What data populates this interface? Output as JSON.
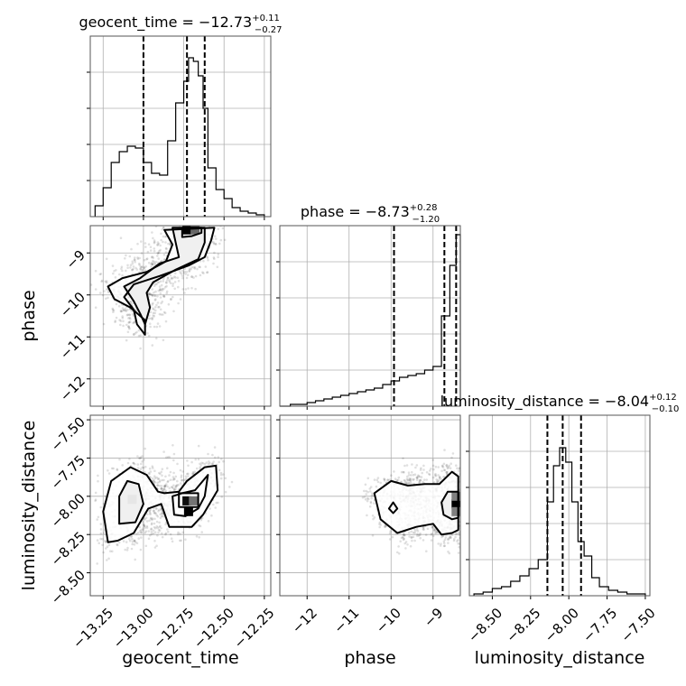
{
  "chart_data": {
    "type": "corner",
    "parameters": [
      {
        "name": "geocent_time",
        "median": "-12.73",
        "plus": "+0.11",
        "minus": "-0.27",
        "range": [
          -13.33,
          -12.21
        ],
        "ticks": [
          -13.25,
          -13.0,
          -12.75,
          -12.5,
          -12.25
        ],
        "tick_labels": [
          "−13.25",
          "−13.00",
          "−12.75",
          "−12.50",
          "−12.25"
        ],
        "quantile_lines": [
          -13.0,
          -12.73,
          -12.62
        ],
        "hist": {
          "bins": [
            -13.3,
            -13.25,
            -13.2,
            -13.15,
            -13.1,
            -13.05,
            -13.0,
            -12.95,
            -12.9,
            -12.85,
            -12.8,
            -12.75,
            -12.72,
            -12.69,
            -12.66,
            -12.63,
            -12.6,
            -12.55,
            -12.5,
            -12.45,
            -12.4,
            -12.35,
            -12.3,
            -12.25
          ],
          "counts": [
            0.06,
            0.16,
            0.3,
            0.36,
            0.39,
            0.38,
            0.3,
            0.24,
            0.23,
            0.42,
            0.63,
            0.75,
            0.88,
            0.86,
            0.78,
            0.6,
            0.27,
            0.15,
            0.1,
            0.05,
            0.03,
            0.02,
            0.01
          ]
        }
      },
      {
        "name": "phase",
        "median": "-8.73",
        "plus": "+0.28",
        "minus": "-1.20",
        "range": [
          -12.65,
          -8.35
        ],
        "ticks": [
          -12,
          -11,
          -10,
          -9
        ],
        "tick_labels": [
          "−12",
          "−11",
          "−10",
          "−9"
        ],
        "quantile_lines": [
          -9.93,
          -8.73,
          -8.45
        ],
        "hist": {
          "bins": [
            -12.65,
            -12.4,
            -12.2,
            -12.0,
            -11.8,
            -11.6,
            -11.4,
            -11.2,
            -11.0,
            -10.8,
            -10.6,
            -10.4,
            -10.2,
            -10.0,
            -9.8,
            -9.6,
            -9.4,
            -9.2,
            -9.0,
            -8.8,
            -8.6,
            -8.45,
            -8.35
          ],
          "counts": [
            0,
            0.01,
            0.01,
            0.02,
            0.03,
            0.04,
            0.05,
            0.06,
            0.07,
            0.08,
            0.09,
            0.1,
            0.12,
            0.14,
            0.16,
            0.17,
            0.18,
            0.2,
            0.22,
            0.5,
            0.78,
            0.95
          ]
        }
      },
      {
        "name": "luminosity_distance",
        "median": "-8.04",
        "plus": "+0.12",
        "minus": "-0.10",
        "range": [
          -8.65,
          -7.47
        ],
        "ticks": [
          -8.5,
          -8.25,
          -8.0,
          -7.75,
          -7.5
        ],
        "tick_labels": [
          "−8.50",
          "−8.25",
          "−8.00",
          "−7.75",
          "−7.50"
        ],
        "quantile_lines": [
          -8.14,
          -8.04,
          -7.92
        ],
        "hist": {
          "bins": [
            -8.62,
            -8.56,
            -8.5,
            -8.44,
            -8.38,
            -8.32,
            -8.26,
            -8.2,
            -8.14,
            -8.1,
            -8.06,
            -8.02,
            -7.98,
            -7.94,
            -7.9,
            -7.85,
            -7.8,
            -7.74,
            -7.68,
            -7.62,
            -7.56,
            -7.5
          ],
          "counts": [
            0.01,
            0.02,
            0.04,
            0.05,
            0.08,
            0.11,
            0.15,
            0.2,
            0.52,
            0.72,
            0.82,
            0.74,
            0.52,
            0.3,
            0.22,
            0.1,
            0.05,
            0.03,
            0.02,
            0.01,
            0.01
          ]
        }
      }
    ],
    "scatter_2d": [
      {
        "x_param": "geocent_time",
        "y_param": "phase",
        "contours": [
          [
            [
              -12.87,
              -8.45
            ],
            [
              -12.82,
              -8.8
            ],
            [
              -12.86,
              -9.2
            ],
            [
              -12.98,
              -9.45
            ],
            [
              -13.13,
              -9.6
            ],
            [
              -13.22,
              -9.8
            ],
            [
              -13.18,
              -10.1
            ],
            [
              -13.08,
              -10.3
            ],
            [
              -12.99,
              -10.6
            ],
            [
              -12.99,
              -10.95
            ],
            [
              -13.04,
              -10.7
            ],
            [
              -13.06,
              -10.35
            ],
            [
              -13.12,
              -10.05
            ],
            [
              -13.06,
              -9.75
            ],
            [
              -12.9,
              -9.55
            ],
            [
              -12.72,
              -9.3
            ],
            [
              -12.62,
              -9.1
            ],
            [
              -12.58,
              -8.7
            ],
            [
              -12.56,
              -8.4
            ]
          ],
          [
            [
              -12.82,
              -8.4
            ],
            [
              -12.8,
              -8.75
            ],
            [
              -12.78,
              -9.1
            ],
            [
              -12.9,
              -9.25
            ],
            [
              -13.02,
              -9.6
            ],
            [
              -13.12,
              -9.8
            ],
            [
              -13.06,
              -10.15
            ],
            [
              -13.02,
              -10.45
            ],
            [
              -12.99,
              -10.7
            ],
            [
              -12.96,
              -10.3
            ],
            [
              -12.98,
              -9.95
            ],
            [
              -12.94,
              -9.7
            ],
            [
              -12.8,
              -9.4
            ],
            [
              -12.66,
              -9.15
            ],
            [
              -12.62,
              -8.75
            ],
            [
              -12.62,
              -8.4
            ]
          ],
          [
            [
              -12.76,
              -8.4
            ],
            [
              -12.76,
              -8.62
            ],
            [
              -12.7,
              -8.6
            ],
            [
              -12.64,
              -8.52
            ],
            [
              -12.64,
              -8.4
            ]
          ]
        ],
        "dense_cells": [
          {
            "x": -12.73,
            "y": -8.45,
            "level": 1.0
          },
          {
            "x": -12.68,
            "y": -8.45,
            "level": 0.6
          }
        ]
      },
      {
        "x_param": "geocent_time",
        "y_param": "luminosity_distance",
        "contours": [
          [
            [
              -13.22,
              -8.3
            ],
            [
              -13.25,
              -8.1
            ],
            [
              -13.2,
              -7.9
            ],
            [
              -13.08,
              -7.81
            ],
            [
              -12.98,
              -7.86
            ],
            [
              -12.91,
              -7.97
            ],
            [
              -12.87,
              -7.98
            ],
            [
              -12.78,
              -7.97
            ],
            [
              -12.73,
              -7.9
            ],
            [
              -12.62,
              -7.81
            ],
            [
              -12.55,
              -7.8
            ],
            [
              -12.54,
              -7.96
            ],
            [
              -12.63,
              -8.12
            ],
            [
              -12.7,
              -8.2
            ],
            [
              -12.84,
              -8.2
            ],
            [
              -12.89,
              -8.05
            ],
            [
              -12.97,
              -8.08
            ],
            [
              -13.06,
              -8.24
            ],
            [
              -13.16,
              -8.29
            ]
          ],
          [
            [
              -13.15,
              -8.18
            ],
            [
              -13.15,
              -8.0
            ],
            [
              -13.1,
              -7.9
            ],
            [
              -13.03,
              -7.92
            ],
            [
              -13.0,
              -8.05
            ],
            [
              -13.05,
              -8.17
            ]
          ],
          [
            [
              -12.81,
              -8.12
            ],
            [
              -12.82,
              -8.0
            ],
            [
              -12.76,
              -7.98
            ],
            [
              -12.68,
              -7.96
            ],
            [
              -12.6,
              -7.86
            ],
            [
              -12.62,
              -8.0
            ],
            [
              -12.66,
              -8.08
            ],
            [
              -12.74,
              -8.13
            ]
          ],
          [
            [
              -12.78,
              -8.07
            ],
            [
              -12.78,
              -7.98
            ],
            [
              -12.66,
              -7.98
            ],
            [
              -12.66,
              -8.07
            ]
          ]
        ],
        "dense_cells": [
          {
            "x": -12.73,
            "y": -8.03,
            "level": 0.95
          },
          {
            "x": -12.69,
            "y": -8.03,
            "level": 0.55
          },
          {
            "x": -12.72,
            "y": -8.1,
            "level": 1.0
          },
          {
            "x": -13.07,
            "y": -8.02,
            "level": 0.1
          }
        ]
      },
      {
        "x_param": "phase",
        "y_param": "luminosity_distance",
        "contours": [
          [
            [
              -8.4,
              -7.87
            ],
            [
              -8.55,
              -7.84
            ],
            [
              -8.85,
              -7.92
            ],
            [
              -9.2,
              -7.92
            ],
            [
              -9.6,
              -7.93
            ],
            [
              -10.0,
              -7.9
            ],
            [
              -10.4,
              -7.98
            ],
            [
              -10.25,
              -8.15
            ],
            [
              -9.85,
              -8.24
            ],
            [
              -9.4,
              -8.2
            ],
            [
              -9.0,
              -8.18
            ],
            [
              -8.8,
              -8.25
            ],
            [
              -8.55,
              -8.24
            ],
            [
              -8.4,
              -8.22
            ]
          ],
          [
            [
              -8.4,
              -7.97
            ],
            [
              -8.65,
              -7.97
            ],
            [
              -8.8,
              -8.04
            ],
            [
              -8.75,
              -8.12
            ],
            [
              -8.55,
              -8.15
            ],
            [
              -8.4,
              -8.14
            ]
          ],
          [
            [
              -9.95,
              -8.04
            ],
            [
              -10.05,
              -8.08
            ],
            [
              -9.95,
              -8.11
            ],
            [
              -9.85,
              -8.08
            ]
          ]
        ],
        "dense_cells": [
          {
            "x": -8.45,
            "y": -8.05,
            "level": 1.0
          },
          {
            "x": -8.45,
            "y": -8.0,
            "level": 0.5
          },
          {
            "x": -8.45,
            "y": -8.1,
            "level": 0.5
          }
        ]
      }
    ],
    "grid": true
  }
}
